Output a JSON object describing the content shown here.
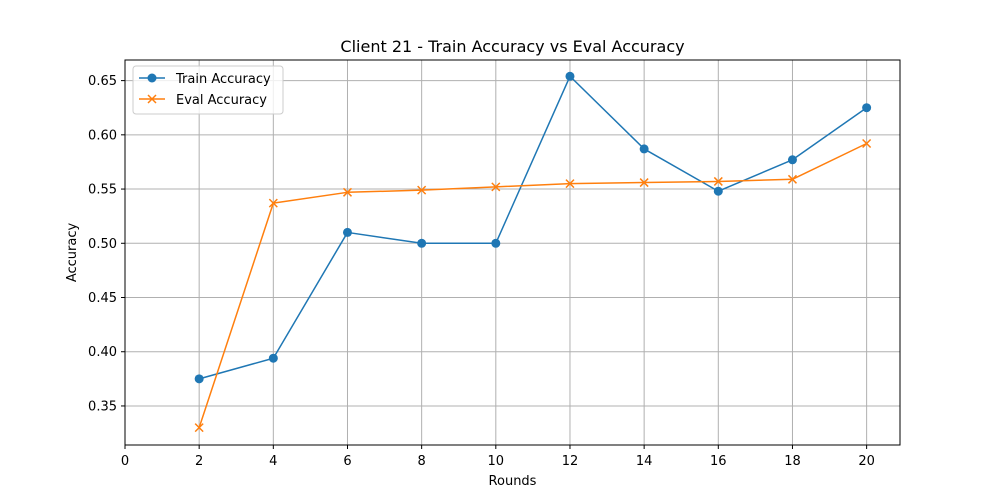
{
  "chart_data": {
    "type": "line",
    "title": "Client 21 - Train Accuracy vs Eval Accuracy",
    "xlabel": "Rounds",
    "ylabel": "Accuracy",
    "xlim": [
      0,
      20.9
    ],
    "ylim": [
      0.314,
      0.669
    ],
    "xticks": [
      0,
      2,
      4,
      6,
      8,
      10,
      12,
      14,
      16,
      18,
      20
    ],
    "yticks": [
      0.35,
      0.4,
      0.45,
      0.5,
      0.55,
      0.6,
      0.65
    ],
    "ytick_labels": [
      "0.35",
      "0.40",
      "0.45",
      "0.50",
      "0.55",
      "0.60",
      "0.65"
    ],
    "grid": true,
    "legend_position": "upper-left",
    "x": [
      2,
      4,
      6,
      8,
      10,
      12,
      14,
      16,
      18,
      20
    ],
    "series": [
      {
        "name": "Train Accuracy",
        "color": "#1f77b4",
        "marker": "circle",
        "values": [
          0.375,
          0.394,
          0.51,
          0.5,
          0.5,
          0.654,
          0.587,
          0.548,
          0.577,
          0.625
        ]
      },
      {
        "name": "Eval Accuracy",
        "color": "#ff7f0e",
        "marker": "x",
        "values": [
          0.33,
          0.537,
          0.547,
          0.549,
          0.552,
          0.555,
          0.556,
          0.557,
          0.559,
          0.592
        ]
      }
    ]
  }
}
